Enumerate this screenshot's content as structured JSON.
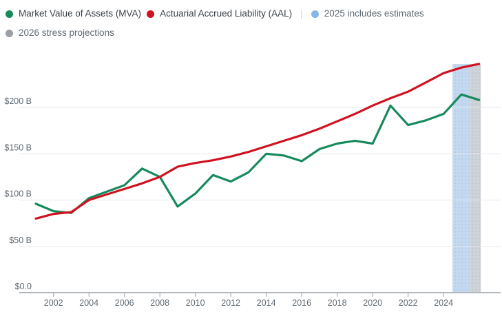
{
  "legend": {
    "row1": [
      {
        "label": "Market Value of Assets (MVA)",
        "dot_color": "#178a5c",
        "label_color": "#3b424a"
      },
      {
        "label": "Actuarial Accrued Liability (AAL)",
        "dot_color": "#d11220",
        "label_color": "#3b424a"
      },
      {
        "label": "2025 includes estimates",
        "dot_color": "#85b7e4",
        "label_color": "#5f6972"
      }
    ],
    "separator": "|",
    "row2": [
      {
        "label": "2026 stress projections",
        "dot_color": "#9aa0a6",
        "label_color": "#5f6972"
      }
    ]
  },
  "chart_data": {
    "type": "line",
    "x": [
      2001,
      2002,
      2003,
      2004,
      2005,
      2006,
      2007,
      2008,
      2009,
      2010,
      2011,
      2012,
      2013,
      2014,
      2015,
      2016,
      2017,
      2018,
      2019,
      2020,
      2021,
      2022,
      2023,
      2024,
      2025,
      2026
    ],
    "series": [
      {
        "name": "Market Value of Assets (MVA)",
        "color": "#178a5c",
        "values": [
          96,
          88,
          86,
          102,
          109,
          116,
          134,
          125,
          93,
          107,
          127,
          120,
          130,
          150,
          148,
          142,
          155,
          161,
          164,
          161,
          202,
          181,
          186,
          193,
          214,
          208
        ]
      },
      {
        "name": "Actuarial Accrued Liability (AAL)",
        "color": "#d11220",
        "values": [
          80,
          85,
          87,
          100,
          106,
          112,
          118,
          125,
          136,
          140,
          143,
          147,
          152,
          158,
          164,
          170,
          177,
          185,
          193,
          202,
          210,
          217,
          227,
          237,
          243,
          247
        ]
      }
    ],
    "bands": [
      {
        "name": "2025 includes estimates",
        "x_from": 2024.5,
        "x_to": 2025.5,
        "color": "#c3d9f0"
      },
      {
        "name": "2026 stress projections",
        "x_from": 2025.5,
        "x_to": 2026.1,
        "color": "#ced3d8"
      }
    ],
    "y_axis": {
      "unit_prefix": "$",
      "ticks": [
        {
          "value": 0,
          "label": "$0.0"
        },
        {
          "value": 50,
          "label": "$50 B"
        },
        {
          "value": 100,
          "label": "$100 B"
        },
        {
          "value": 150,
          "label": "$150 B"
        },
        {
          "value": 200,
          "label": "$200 B"
        }
      ],
      "range": [
        0,
        250
      ]
    },
    "x_axis": {
      "ticks": [
        2002,
        2004,
        2006,
        2008,
        2010,
        2012,
        2014,
        2016,
        2018,
        2020,
        2022,
        2024
      ],
      "range": [
        2001,
        2026.1
      ]
    },
    "grid": true,
    "legend_position": "top"
  },
  "style_tokens": {
    "gridline_color": "#e8eaec",
    "axis_line_color": "#b3b8bd",
    "tick_color": "#9aa0a6",
    "axis_text_color": "#5f6972"
  }
}
